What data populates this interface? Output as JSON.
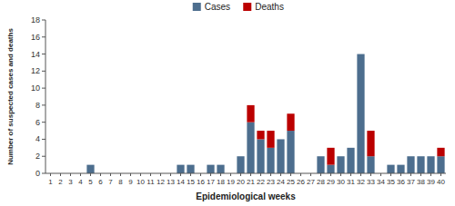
{
  "chart_data": {
    "type": "bar",
    "stacked": true,
    "xlabel": "Epidemiological weeks",
    "ylabel": "Number of suspected cases and deaths",
    "categories": [
      1,
      2,
      3,
      4,
      5,
      6,
      7,
      8,
      9,
      10,
      11,
      12,
      13,
      14,
      15,
      16,
      17,
      18,
      19,
      20,
      21,
      22,
      23,
      24,
      25,
      26,
      27,
      28,
      29,
      30,
      31,
      32,
      33,
      34,
      35,
      36,
      37,
      38,
      39,
      40
    ],
    "series": [
      {
        "name": "Cases",
        "color": "#4d6e8e",
        "values": [
          0,
          0,
          0,
          0,
          1,
          0,
          0,
          0,
          0,
          0,
          0,
          0,
          0,
          1,
          1,
          0,
          1,
          1,
          0,
          2,
          6,
          4,
          3,
          4,
          5,
          0,
          0,
          2,
          1,
          2,
          3,
          14,
          2,
          0,
          1,
          1,
          2,
          2,
          2,
          2
        ]
      },
      {
        "name": "Deaths",
        "color": "#bb0000",
        "values": [
          0,
          0,
          0,
          0,
          0,
          0,
          0,
          0,
          0,
          0,
          0,
          0,
          0,
          0,
          0,
          0,
          0,
          0,
          0,
          0,
          2,
          1,
          2,
          0,
          2,
          0,
          0,
          0,
          2,
          0,
          0,
          0,
          3,
          0,
          0,
          0,
          0,
          0,
          0,
          1
        ]
      }
    ],
    "ylim": [
      0,
      18
    ],
    "yticks": [
      0,
      2,
      4,
      6,
      8,
      10,
      12,
      14,
      16,
      18
    ],
    "grid": false,
    "legend": "top"
  }
}
